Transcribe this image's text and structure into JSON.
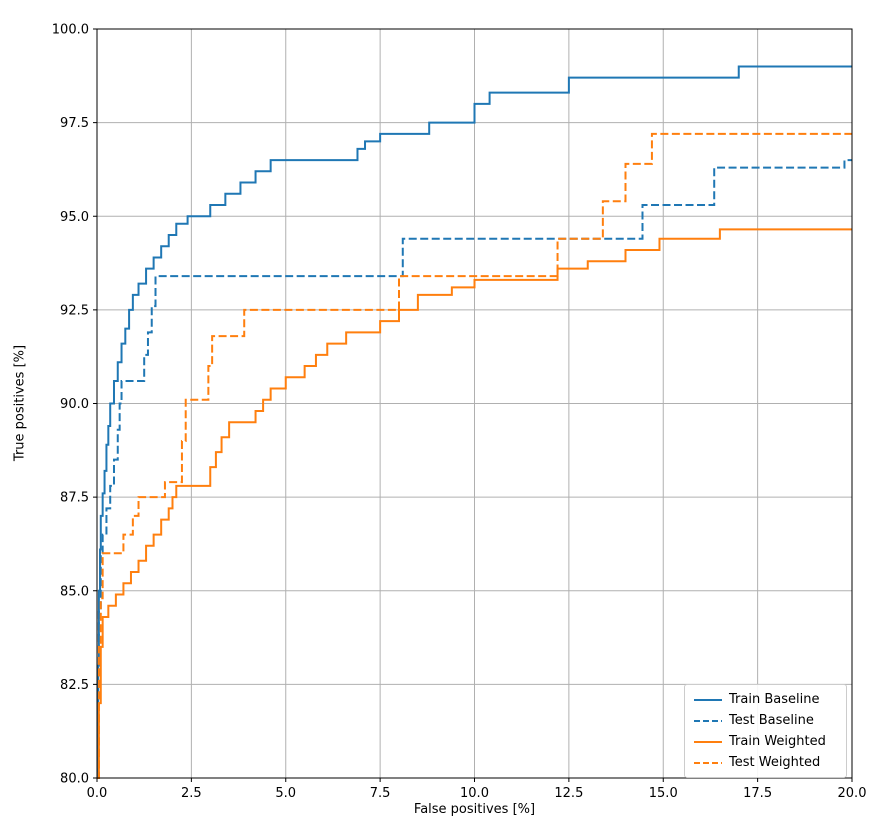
{
  "chart_data": {
    "type": "line",
    "step": "post",
    "title": "",
    "xlabel": "False positives [%]",
    "ylabel": "True positives [%]",
    "xlim": [
      0.0,
      20.0
    ],
    "ylim": [
      80.0,
      100.0
    ],
    "xticks": [
      0.0,
      2.5,
      5.0,
      7.5,
      10.0,
      12.5,
      15.0,
      17.5,
      20.0
    ],
    "yticks": [
      80.0,
      82.5,
      85.0,
      87.5,
      90.0,
      92.5,
      95.0,
      97.5,
      100.0
    ],
    "xtick_labels": [
      "0.0",
      "2.5",
      "5.0",
      "7.5",
      "10.0",
      "12.5",
      "15.0",
      "17.5",
      "20.0"
    ],
    "ytick_labels": [
      "80.0",
      "82.5",
      "85.0",
      "87.5",
      "90.0",
      "92.5",
      "95.0",
      "97.5",
      "100.0"
    ],
    "grid": true,
    "grid_color": "#b0b0b0",
    "spine_color": "#000000",
    "legend_position": "lower right",
    "series": [
      {
        "name": "Train Baseline",
        "color": "#1f77b4",
        "dash": "solid",
        "x": [
          0,
          0.03,
          0.05,
          0.08,
          0.1,
          0.15,
          0.2,
          0.25,
          0.3,
          0.35,
          0.45,
          0.55,
          0.65,
          0.75,
          0.85,
          0.95,
          1.1,
          1.3,
          1.5,
          1.7,
          1.9,
          2.1,
          2.4,
          3.0,
          3.4,
          3.8,
          4.2,
          4.6,
          6.9,
          7.1,
          7.5,
          8.8,
          10.0,
          10.4,
          12.5,
          17.0,
          20.0
        ],
        "y": [
          80,
          83,
          85,
          86.1,
          87,
          87.6,
          88.2,
          88.9,
          89.4,
          90,
          90.6,
          91.1,
          91.6,
          92,
          92.5,
          92.9,
          93.2,
          93.6,
          93.9,
          94.2,
          94.5,
          94.8,
          95,
          95.3,
          95.6,
          95.9,
          96.2,
          96.5,
          96.8,
          97,
          97.2,
          97.5,
          98,
          98.3,
          98.7,
          99,
          99
        ]
      },
      {
        "name": "Test Baseline",
        "color": "#1f77b4",
        "dash": "dashed",
        "x": [
          0,
          0.05,
          0.1,
          0.15,
          0.25,
          0.35,
          0.45,
          0.55,
          0.6,
          0.65,
          1.25,
          1.35,
          1.45,
          1.55,
          8.1,
          14.45,
          16.35,
          19.8,
          20.0
        ],
        "y": [
          80,
          84.5,
          86,
          86.5,
          87.2,
          87.8,
          88.5,
          89.3,
          90,
          90.6,
          91.3,
          91.9,
          92.6,
          93.4,
          94.4,
          95.3,
          96.3,
          96.5,
          96.5
        ]
      },
      {
        "name": "Train Weighted",
        "color": "#ff7f0e",
        "dash": "solid",
        "x": [
          0,
          0.05,
          0.1,
          0.15,
          0.3,
          0.5,
          0.7,
          0.9,
          1.1,
          1.3,
          1.5,
          1.7,
          1.9,
          2.0,
          2.1,
          3.0,
          3.15,
          3.3,
          3.5,
          4.2,
          4.4,
          4.6,
          5.0,
          5.5,
          5.8,
          6.1,
          6.6,
          7.5,
          8.0,
          8.5,
          9.4,
          10.0,
          12.2,
          13.0,
          14.0,
          14.9,
          16.5,
          20.0
        ],
        "y": [
          80,
          82,
          83.5,
          84.3,
          84.6,
          84.9,
          85.2,
          85.5,
          85.8,
          86.2,
          86.5,
          86.9,
          87.2,
          87.5,
          87.8,
          88.3,
          88.7,
          89.1,
          89.5,
          89.8,
          90.1,
          90.4,
          90.7,
          91.0,
          91.3,
          91.6,
          91.9,
          92.2,
          92.5,
          92.9,
          93.1,
          93.3,
          93.6,
          93.8,
          94.1,
          94.4,
          94.65,
          94.65
        ]
      },
      {
        "name": "Test Weighted",
        "color": "#ff7f0e",
        "dash": "dashed",
        "x": [
          0,
          0.05,
          0.1,
          0.15,
          0.7,
          0.95,
          1.1,
          1.8,
          2.25,
          2.35,
          2.95,
          3.05,
          3.9,
          8.0,
          12.2,
          13.4,
          14.0,
          14.7,
          20.0
        ],
        "y": [
          80,
          83.5,
          84.8,
          86.0,
          86.5,
          87.0,
          87.5,
          87.9,
          89.0,
          90.1,
          91.0,
          91.8,
          92.5,
          93.4,
          94.4,
          95.4,
          96.4,
          97.2,
          97.2
        ]
      }
    ]
  }
}
